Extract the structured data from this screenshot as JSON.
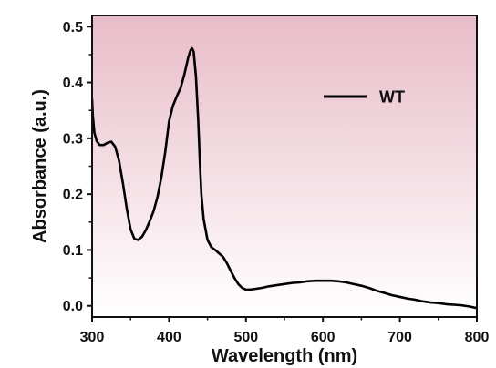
{
  "chart_data": {
    "type": "line",
    "title": "",
    "xlabel": "Wavelength (nm)",
    "ylabel": "Absorbance (a.u.)",
    "xlim": [
      300,
      800
    ],
    "ylim": [
      -0.02,
      0.52
    ],
    "x_ticks": [
      300,
      400,
      500,
      600,
      700,
      800
    ],
    "y_ticks": [
      0.0,
      0.1,
      0.2,
      0.3,
      0.4,
      0.5
    ],
    "x_tick_labels": [
      "300",
      "400",
      "500",
      "600",
      "700",
      "800"
    ],
    "y_tick_labels": [
      "0.0",
      "0.1",
      "0.2",
      "0.3",
      "0.4",
      "0.5"
    ],
    "grid": false,
    "legend_position": "top-right",
    "background_gradient": {
      "top_color": "#e8bcc8",
      "bottom_color": "#ffffff"
    },
    "series": [
      {
        "name": "WT",
        "color": "#000000",
        "x": [
          300,
          301,
          303,
          306,
          310,
          315,
          320,
          325,
          330,
          335,
          340,
          345,
          350,
          355,
          360,
          365,
          370,
          375,
          380,
          385,
          390,
          395,
          400,
          405,
          410,
          415,
          420,
          425,
          428,
          430,
          432,
          435,
          438,
          440,
          442,
          445,
          450,
          455,
          460,
          465,
          470,
          475,
          480,
          485,
          490,
          495,
          500,
          505,
          510,
          520,
          530,
          540,
          550,
          560,
          570,
          580,
          590,
          600,
          610,
          620,
          630,
          640,
          650,
          660,
          670,
          680,
          690,
          700,
          710,
          720,
          730,
          740,
          750,
          760,
          770,
          780,
          790,
          800
        ],
        "y": [
          0.37,
          0.34,
          0.31,
          0.295,
          0.288,
          0.288,
          0.292,
          0.294,
          0.285,
          0.26,
          0.22,
          0.175,
          0.137,
          0.12,
          0.118,
          0.124,
          0.136,
          0.152,
          0.17,
          0.195,
          0.23,
          0.275,
          0.33,
          0.358,
          0.375,
          0.39,
          0.415,
          0.445,
          0.458,
          0.461,
          0.455,
          0.41,
          0.33,
          0.26,
          0.2,
          0.155,
          0.118,
          0.105,
          0.1,
          0.094,
          0.088,
          0.077,
          0.063,
          0.05,
          0.039,
          0.032,
          0.029,
          0.029,
          0.03,
          0.032,
          0.035,
          0.037,
          0.039,
          0.041,
          0.042,
          0.044,
          0.045,
          0.045,
          0.045,
          0.044,
          0.042,
          0.039,
          0.036,
          0.032,
          0.027,
          0.023,
          0.019,
          0.016,
          0.013,
          0.011,
          0.008,
          0.006,
          0.005,
          0.003,
          0.002,
          0.001,
          -0.001,
          -0.004
        ]
      }
    ]
  }
}
